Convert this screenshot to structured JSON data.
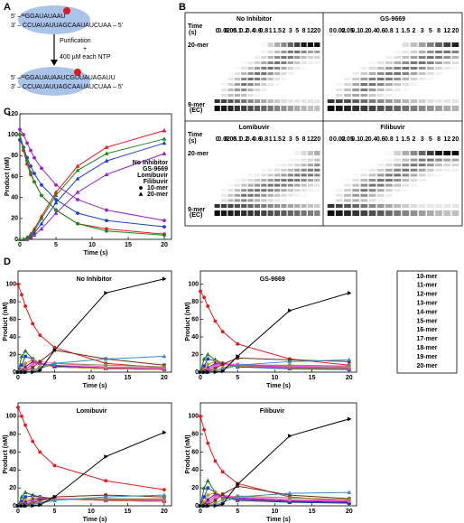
{
  "schematic": {
    "label": "A",
    "top": [
      "5' –³²GGAUAUAAU",
      "3' – CCUAUAUUAGCAAUAUCUAA – 5'"
    ],
    "steps": [
      "Purification",
      "+",
      "400 µM each NTP"
    ],
    "bottom": [
      "5' –³²GGAUAUAAUCGUUAUAGAUU",
      "3' – CCUAUAUUAGCAAUAUCUAA – 5'"
    ]
  },
  "gels": {
    "label": "B",
    "time_label": [
      "Time",
      "(s)"
    ],
    "times": [
      0,
      0.02,
      0.05,
      0.1,
      0.2,
      0.4,
      0.6,
      0.8,
      1,
      1.5,
      2,
      3,
      5,
      8,
      12,
      20
    ],
    "marker_top": "20-mer",
    "marker_bottom": [
      "9-mer",
      "(EC)"
    ],
    "titles": [
      "No Inhibitor",
      "GS-9669",
      "Lomibuvir",
      "Filibuvir"
    ]
  },
  "legend_D": [
    {
      "name": "10-mer",
      "color": "#e41a1c"
    },
    {
      "name": "11-mer",
      "color": "#1a7a1a"
    },
    {
      "name": "12-mer",
      "color": "#1a3fcf"
    },
    {
      "name": "13-mer",
      "color": "#d98c00"
    },
    {
      "name": "14-mer",
      "color": "#3a1a9a"
    },
    {
      "name": "15-mer",
      "color": "#cc33cc"
    },
    {
      "name": "16-mer",
      "color": "#ff66cc"
    },
    {
      "name": "17-mer",
      "color": "#7a2a10"
    },
    {
      "name": "18-mer",
      "color": "#8c8c3c"
    },
    {
      "name": "19-mer",
      "color": "#3a8cc8"
    },
    {
      "name": "20-mer",
      "color": "#000000"
    }
  ],
  "chart_data": [
    {
      "type": "scatter",
      "panel": "C",
      "xlabel": "Time (s)",
      "ylabel": "Product (nM)",
      "x": [
        0,
        0.5,
        1,
        1.5,
        2,
        3,
        5,
        8,
        12,
        20
      ],
      "xlim": [
        0,
        21
      ],
      "xticks": [
        0,
        5,
        10,
        15,
        20
      ],
      "ylim": [
        0,
        120
      ],
      "yticks": [
        0,
        20,
        40,
        60,
        80,
        100,
        120
      ],
      "species": [
        "10-mer",
        "20-mer"
      ],
      "series": [
        {
          "name": "No Inhibitor",
          "color": "#e8191d",
          "values": [
            [
              100,
              85,
              72,
              62,
              55,
              42,
              28,
              15,
              10,
              5
            ],
            [
              0,
              0,
              2,
              5,
              10,
              22,
              45,
              70,
              88,
              104
            ]
          ]
        },
        {
          "name": "GS-9669",
          "color": "#1a3fcf",
          "values": [
            [
              95,
              88,
              78,
              70,
              63,
              52,
              38,
              25,
              18,
              12
            ],
            [
              0,
              0,
              1,
              3,
              6,
              15,
              35,
              58,
              75,
              92
            ]
          ]
        },
        {
          "name": "Lomibuvir",
          "color": "#9b1fc7",
          "values": [
            [
              105,
              100,
              92,
              85,
              78,
              68,
              52,
              38,
              28,
              18
            ],
            [
              0,
              0,
              0,
              2,
              4,
              10,
              25,
              45,
              62,
              82
            ]
          ]
        },
        {
          "name": "Filibuvir",
          "color": "#1a8a1a",
          "values": [
            [
              100,
              88,
              75,
              64,
              55,
              42,
              28,
              15,
              8,
              4
            ],
            [
              0,
              0,
              1,
              4,
              8,
              20,
              42,
              66,
              82,
              96
            ]
          ]
        }
      ]
    },
    {
      "type": "line",
      "panel": "D",
      "title": "No Inhibitor",
      "xlabel": "Time (s)",
      "ylabel": "Product (nM)",
      "x": [
        0,
        0.5,
        1,
        2,
        3,
        5,
        12,
        20
      ],
      "xlim": [
        0,
        21
      ],
      "xticks": [
        0,
        5,
        10,
        15,
        20
      ],
      "ylim": [
        0,
        115
      ],
      "yticks": [
        0,
        20,
        40,
        60,
        80,
        100
      ],
      "series": [
        [
          100,
          88,
          75,
          55,
          42,
          28,
          10,
          5
        ],
        [
          0,
          18,
          24,
          15,
          10,
          6,
          4,
          3
        ],
        [
          0,
          8,
          18,
          15,
          10,
          6,
          4,
          3
        ],
        [
          0,
          3,
          10,
          14,
          10,
          6,
          4,
          3
        ],
        [
          0,
          1,
          6,
          12,
          10,
          7,
          5,
          4
        ],
        [
          0,
          0,
          3,
          10,
          10,
          8,
          5,
          4
        ],
        [
          0,
          0,
          2,
          8,
          12,
          10,
          6,
          5
        ],
        [
          0,
          0,
          1,
          5,
          12,
          25,
          15,
          8
        ],
        [
          0,
          0,
          0,
          2,
          6,
          10,
          8,
          6
        ],
        [
          0,
          0,
          0,
          1,
          4,
          10,
          15,
          18
        ],
        [
          0,
          0,
          0,
          0,
          2,
          25,
          90,
          106
        ]
      ]
    },
    {
      "type": "line",
      "title": "GS-9669",
      "xlabel": "Time (s)",
      "ylabel": "Product (nM)",
      "x": [
        0,
        0.5,
        1,
        2,
        3,
        5,
        12,
        20
      ],
      "xlim": [
        0,
        21
      ],
      "xticks": [
        0,
        5,
        10,
        15,
        20
      ],
      "ylim": [
        0,
        115
      ],
      "yticks": [
        0,
        20,
        40,
        60,
        80,
        100
      ],
      "series": [
        [
          92,
          85,
          75,
          58,
          46,
          32,
          15,
          8
        ],
        [
          0,
          15,
          20,
          14,
          10,
          6,
          4,
          3
        ],
        [
          0,
          7,
          15,
          13,
          10,
          6,
          4,
          3
        ],
        [
          0,
          3,
          9,
          12,
          10,
          7,
          5,
          4
        ],
        [
          0,
          1,
          5,
          10,
          10,
          8,
          6,
          5
        ],
        [
          0,
          0,
          3,
          8,
          9,
          8,
          6,
          5
        ],
        [
          0,
          0,
          2,
          6,
          9,
          9,
          7,
          6
        ],
        [
          0,
          0,
          1,
          4,
          9,
          16,
          14,
          12
        ],
        [
          0,
          0,
          0,
          2,
          5,
          8,
          8,
          7
        ],
        [
          0,
          0,
          0,
          1,
          3,
          8,
          12,
          14
        ],
        [
          0,
          0,
          0,
          0,
          1,
          18,
          70,
          90
        ]
      ]
    },
    {
      "type": "line",
      "title": "Lomibuvir",
      "xlabel": "Time (s)",
      "ylabel": "Product (nM)",
      "x": [
        0,
        0.5,
        1,
        2,
        3,
        5,
        12,
        20
      ],
      "xlim": [
        0,
        21
      ],
      "xticks": [
        0,
        5,
        10,
        15,
        20
      ],
      "ylim": [
        0,
        115
      ],
      "yticks": [
        0,
        20,
        40,
        60,
        80,
        100
      ],
      "series": [
        [
          110,
          100,
          90,
          72,
          60,
          45,
          28,
          18
        ],
        [
          0,
          10,
          15,
          12,
          10,
          8,
          6,
          5
        ],
        [
          0,
          5,
          10,
          11,
          10,
          8,
          6,
          5
        ],
        [
          0,
          2,
          6,
          9,
          9,
          8,
          6,
          5
        ],
        [
          0,
          1,
          4,
          7,
          8,
          8,
          7,
          6
        ],
        [
          0,
          0,
          2,
          5,
          7,
          8,
          7,
          6
        ],
        [
          0,
          0,
          1,
          4,
          6,
          8,
          8,
          7
        ],
        [
          0,
          0,
          1,
          3,
          6,
          10,
          12,
          10
        ],
        [
          0,
          0,
          0,
          2,
          4,
          7,
          8,
          8
        ],
        [
          0,
          0,
          0,
          1,
          3,
          6,
          10,
          12
        ],
        [
          0,
          0,
          0,
          0,
          1,
          10,
          55,
          82
        ]
      ]
    },
    {
      "type": "line",
      "title": "Filibuvir",
      "xlabel": "Time (s)",
      "ylabel": "Product (nM)",
      "x": [
        0,
        0.5,
        1,
        2,
        3,
        5,
        12,
        20
      ],
      "xlim": [
        0,
        21
      ],
      "xticks": [
        0,
        5,
        10,
        15,
        20
      ],
      "ylim": [
        0,
        115
      ],
      "yticks": [
        0,
        20,
        40,
        60,
        80,
        100
      ],
      "series": [
        [
          100,
          85,
          70,
          50,
          38,
          25,
          10,
          5
        ],
        [
          0,
          20,
          28,
          15,
          10,
          6,
          4,
          3
        ],
        [
          0,
          10,
          20,
          15,
          10,
          6,
          4,
          3
        ],
        [
          0,
          4,
          12,
          15,
          11,
          7,
          5,
          4
        ],
        [
          0,
          1,
          7,
          13,
          11,
          8,
          5,
          4
        ],
        [
          0,
          0,
          4,
          11,
          11,
          9,
          6,
          5
        ],
        [
          0,
          0,
          2,
          9,
          12,
          10,
          7,
          6
        ],
        [
          0,
          0,
          1,
          6,
          13,
          22,
          12,
          8
        ],
        [
          0,
          0,
          0,
          3,
          7,
          11,
          9,
          7
        ],
        [
          0,
          0,
          0,
          1,
          4,
          10,
          14,
          15
        ],
        [
          0,
          0,
          0,
          0,
          2,
          24,
          78,
          97
        ]
      ]
    }
  ]
}
